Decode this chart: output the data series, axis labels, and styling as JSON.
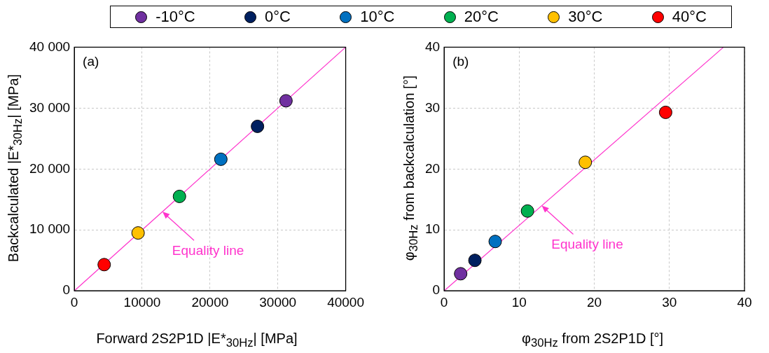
{
  "chart_data": [
    {
      "type": "scatter",
      "xlabel": "Forward 2S2P1D |E*$_{30Hz}$| [MPa]",
      "ylabel": "Backcalculated |E*$_{30Hz}$| [MPa]",
      "annotations": [
        "(a)",
        {
          "text": "Equality line",
          "x": 13000,
          "y": 13000
        }
      ],
      "xlim": [
        0,
        40000
      ],
      "xticks": [
        0,
        10000,
        20000,
        30000,
        40000
      ],
      "ylim": [
        0,
        40000
      ],
      "yticks": [
        {
          "value": 0,
          "label": "0"
        },
        {
          "value": 10000,
          "label": "10 000"
        },
        {
          "value": 20000,
          "label": "20 000"
        },
        {
          "value": 30000,
          "label": "30 000"
        },
        {
          "value": 40000,
          "label": "40 000"
        }
      ],
      "grid": true,
      "legend": "top",
      "marker": "circle",
      "series": [
        {
          "name": "-10°C",
          "color": "#7030a0",
          "x": [
            31200
          ],
          "values": [
            31200
          ]
        },
        {
          "name": "0°C",
          "color": "#002060",
          "x": [
            27000
          ],
          "values": [
            27000
          ]
        },
        {
          "name": "10°C",
          "color": "#0070c0",
          "x": [
            21600
          ],
          "values": [
            21600
          ]
        },
        {
          "name": "20°C",
          "color": "#00b050",
          "x": [
            15500
          ],
          "values": [
            15500
          ]
        },
        {
          "name": "30°C",
          "color": "#ffc000",
          "x": [
            9400
          ],
          "values": [
            9500
          ]
        },
        {
          "name": "40°C",
          "color": "#ff0000",
          "x": [
            4400
          ],
          "values": [
            4300
          ]
        },
        {
          "type": "line",
          "marker": "none",
          "color": "#ff33cc",
          "x": [
            0,
            40000
          ],
          "values": [
            0,
            40000
          ]
        }
      ]
    },
    {
      "type": "scatter",
      "xlabel": "φ$_{30Hz}$ from 2S2P1D [°]",
      "ylabel": "φ$_{30Hz}$ from backcalculation [°]",
      "annotations": [
        "(b)",
        {
          "text": "Equality line",
          "x": 13,
          "y": 14
        }
      ],
      "xlim": [
        0,
        40
      ],
      "xticks": [
        0,
        10,
        20,
        30,
        40
      ],
      "ylim": [
        0,
        40
      ],
      "yticks": [
        0,
        10,
        20,
        30,
        40
      ],
      "grid": true,
      "marker": "circle",
      "series": [
        {
          "color": "#7030a0",
          "x": [
            2.2
          ],
          "values": [
            2.8
          ]
        },
        {
          "color": "#002060",
          "x": [
            4.1
          ],
          "values": [
            5.0
          ]
        },
        {
          "color": "#0070c0",
          "x": [
            6.8
          ],
          "values": [
            8.1
          ]
        },
        {
          "color": "#00b050",
          "x": [
            11.1
          ],
          "values": [
            13.1
          ]
        },
        {
          "color": "#ffc000",
          "x": [
            18.8
          ],
          "values": [
            21.1
          ]
        },
        {
          "color": "#ff0000",
          "x": [
            29.5
          ],
          "values": [
            29.3
          ]
        },
        {
          "type": "line",
          "marker": "none",
          "color": "#ff33cc",
          "x": [
            0,
            37.2
          ],
          "values": [
            0,
            40
          ]
        }
      ]
    }
  ]
}
